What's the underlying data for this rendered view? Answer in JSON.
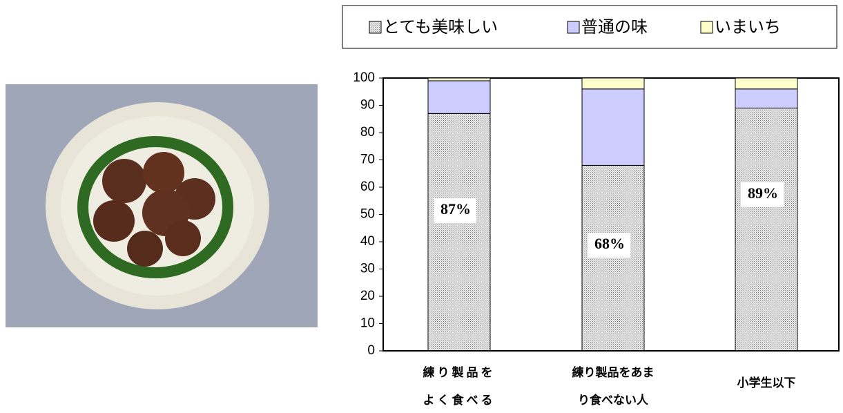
{
  "chart_data": {
    "type": "stacked-bar",
    "categories": [
      [
        "練り製品を",
        "よく食べる"
      ],
      [
        "練り製品をあま",
        "り食べない人"
      ],
      [
        "小学生以下"
      ]
    ],
    "series": [
      {
        "name": "とても美味しい",
        "color": "#d4d4d4",
        "values": [
          87,
          68,
          89
        ],
        "value_labels": [
          "87%",
          "68%",
          "89%"
        ]
      },
      {
        "name": "普通の味",
        "color": "#ccccff",
        "values": [
          12,
          28,
          7
        ]
      },
      {
        "name": "いまいち",
        "color": "#ffffcc",
        "values": [
          1,
          4,
          4
        ]
      }
    ],
    "ylim": [
      0,
      100
    ],
    "yticks": [
      0,
      10,
      20,
      30,
      40,
      50,
      60,
      70,
      80,
      90,
      100
    ]
  }
}
